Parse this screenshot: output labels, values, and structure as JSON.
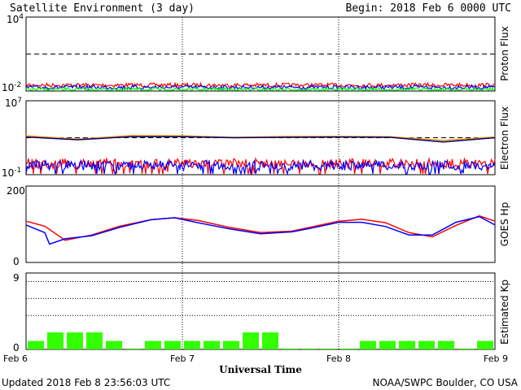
{
  "header": {
    "title": "Satellite Environment (3 day)",
    "begin": "Begin:  2018 Feb 6 0000 UTC"
  },
  "footer": {
    "updated": "Updated 2018 Feb  8 23:56:03 UTC",
    "credit": "NOAA/SWPC Boulder, CO USA"
  },
  "colors": {
    "red": "#ff0000",
    "blue": "#0000ff",
    "green": "#00ff00",
    "orange": "#ff9900",
    "navy": "#000080",
    "kp_bar": "#33ff00"
  },
  "chart_data": [
    {
      "type": "line",
      "ylabel": "Proton Flux",
      "scale": "log",
      "ylim": [
        0.01,
        10000
      ],
      "tick_labels": [
        {
          "base": "10",
          "exp": "4"
        },
        {
          "base": "10",
          "exp": "-2"
        }
      ],
      "threshold": 10,
      "grid": "day separators dotted",
      "series": [
        {
          "color": "#ff0000",
          "level": 0.03
        },
        {
          "color": "#0000ff",
          "level": 0.02
        },
        {
          "color": "#00ff00",
          "level": 0.013
        }
      ]
    },
    {
      "type": "line",
      "ylabel": "Electron Flux",
      "scale": "log",
      "ylim": [
        0.1,
        10000000
      ],
      "tick_labels": [
        {
          "base": "10",
          "exp": "7"
        },
        {
          "base": "10",
          "exp": "-1"
        }
      ],
      "threshold": 1000,
      "series": [
        {
          "color": "#ff9900",
          "x": [
            0,
            0.33,
            0.67,
            1.0,
            1.33,
            1.67,
            2.0,
            2.33,
            2.67,
            3.0
          ],
          "y": [
            1600,
            700,
            1700,
            1600,
            1100,
            1400,
            1400,
            1300,
            500,
            1200
          ]
        },
        {
          "color": "#000080",
          "x": [
            0,
            0.33,
            0.67,
            1.0,
            1.33,
            1.67,
            2.0,
            2.33,
            2.67,
            3.0
          ],
          "y": [
            1200,
            600,
            1300,
            1300,
            1000,
            1100,
            1200,
            1100,
            350,
            1000
          ]
        },
        {
          "color": "#ff0000",
          "level": 1.6
        },
        {
          "color": "#0000ff",
          "level": 1.0
        }
      ]
    },
    {
      "type": "line",
      "ylabel": "GOES Hp",
      "ylim": [
        0,
        200
      ],
      "tick_labels": [
        "200",
        "0"
      ],
      "series": [
        {
          "color": "#ff0000",
          "x": [
            0,
            0.12,
            0.25,
            0.42,
            0.6,
            0.8,
            0.95,
            1.1,
            1.3,
            1.5,
            1.7,
            1.85,
            2.0,
            2.15,
            2.3,
            2.45,
            2.6,
            2.75,
            2.9,
            3.0
          ],
          "y": [
            108,
            95,
            58,
            72,
            95,
            112,
            117,
            110,
            92,
            78,
            82,
            95,
            108,
            113,
            104,
            78,
            67,
            97,
            122,
            108
          ]
        },
        {
          "color": "#0000ff",
          "x": [
            0,
            0.12,
            0.15,
            0.25,
            0.42,
            0.6,
            0.8,
            0.95,
            1.1,
            1.3,
            1.5,
            1.7,
            1.85,
            2.0,
            2.15,
            2.3,
            2.45,
            2.6,
            2.75,
            2.9,
            3.0
          ],
          "y": [
            98,
            78,
            48,
            62,
            70,
            92,
            112,
            117,
            104,
            88,
            75,
            80,
            92,
            105,
            105,
            94,
            72,
            72,
            105,
            120,
            98
          ]
        }
      ]
    },
    {
      "type": "bar",
      "ylabel": "Estimated Kp",
      "ylim": [
        0,
        9
      ],
      "tick_labels": [
        "9",
        "0"
      ],
      "kp_gridlines": [
        4,
        6,
        8
      ],
      "values": [
        1,
        2,
        2,
        2,
        1,
        0,
        1,
        1,
        1,
        1,
        1,
        2,
        2,
        0,
        0,
        0,
        0,
        1,
        1,
        1,
        1,
        1,
        0,
        1
      ]
    }
  ],
  "x_axis": {
    "label": "Universal Time",
    "ticks": [
      "Feb 6",
      "Feb 7",
      "Feb 8",
      "Feb 9"
    ]
  }
}
